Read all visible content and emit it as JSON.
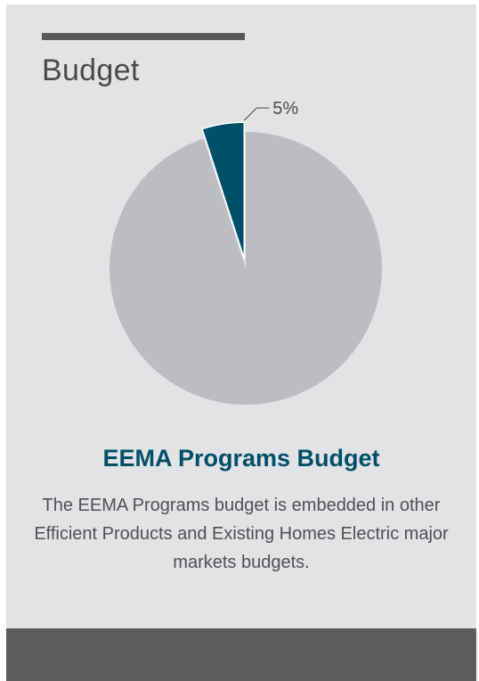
{
  "section": {
    "title": "Budget"
  },
  "chart_data": {
    "type": "pie",
    "title": "EEMA Programs Budget",
    "slices": [
      {
        "label": "",
        "value": 95,
        "color": "#bcbdc0"
      },
      {
        "label": "5%",
        "value": 5,
        "color": "#00506b"
      }
    ]
  },
  "description": "The EEMA Programs budget is embedded in other Efficient Products and Existing Homes Electric major markets budgets.",
  "colors": {
    "card": "#e2e3e5",
    "accent": "#58595b",
    "highlight": "#00506b",
    "footer": "#5c5c5f"
  }
}
